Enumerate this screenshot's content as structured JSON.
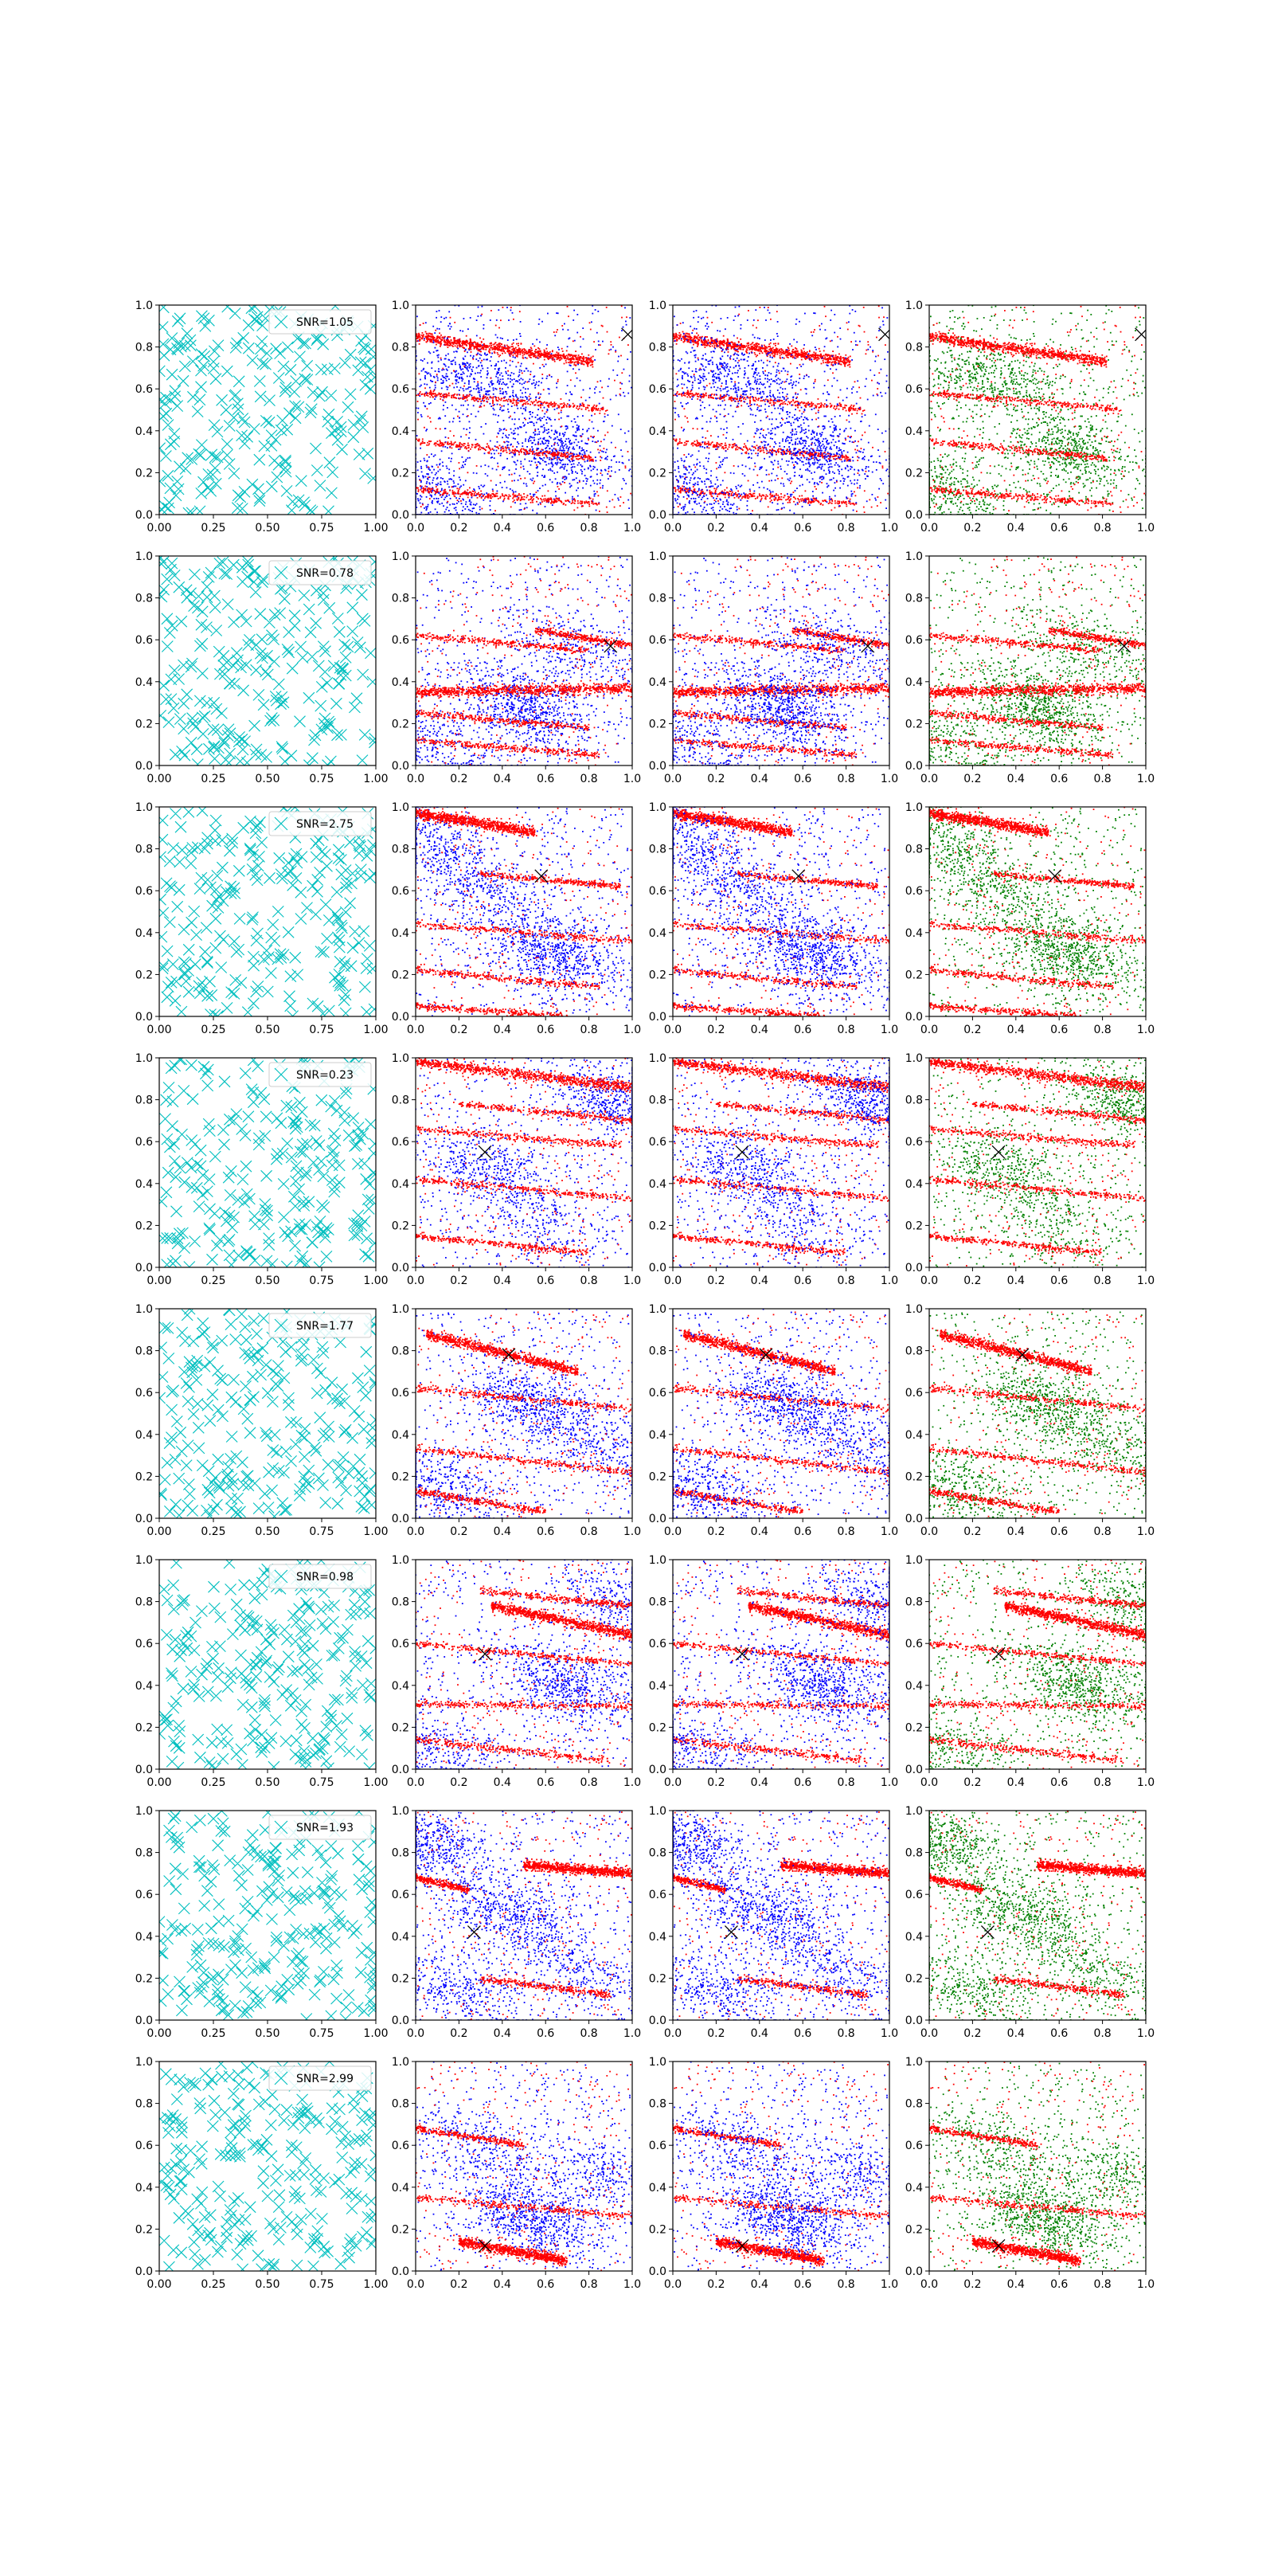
{
  "figure": {
    "rows": 8,
    "columns": [
      "random-positions",
      "red-blue-overlay",
      "red-blue-separate",
      "red-green-separate"
    ]
  },
  "colors": {
    "cyan": "#00bfbf",
    "red": "#ff0000",
    "blue": "#0000ff",
    "green": "#008000",
    "marker": "#000000"
  },
  "chart_data": {
    "type": "scatter",
    "grid": false,
    "xlim": [
      0,
      1
    ],
    "ylim": [
      0,
      1
    ],
    "col1_xticks": [
      "0.00",
      "0.25",
      "0.50",
      "0.75",
      "1.00"
    ],
    "col1_yticks": [
      "0.0",
      "0.2",
      "0.4",
      "0.6",
      "0.8",
      "1.0"
    ],
    "other_xticks": [
      "0.0",
      "0.2",
      "0.4",
      "0.6",
      "0.8",
      "1.0"
    ],
    "other_yticks": [
      "0.0",
      "0.2",
      "0.4",
      "0.6",
      "0.8",
      "1.0"
    ],
    "legend_position": "top-right",
    "rows": [
      {
        "legend": "SNR=1.05",
        "marker": [
          0.98,
          0.86
        ],
        "red_streaks": [
          [
            0.0,
            0.85,
            0.82,
            0.73
          ],
          [
            0.0,
            0.58,
            0.9,
            0.5
          ],
          [
            0.0,
            0.35,
            0.82,
            0.27
          ],
          [
            0.0,
            0.12,
            0.85,
            0.05
          ]
        ],
        "blue_blobs": [
          [
            0.3,
            0.65,
            0.7
          ],
          [
            0.65,
            0.3,
            0.8
          ],
          [
            0.1,
            0.1,
            0.5
          ]
        ]
      },
      {
        "legend": "SNR=0.78",
        "marker": [
          0.9,
          0.57
        ],
        "red_streaks": [
          [
            0.0,
            0.35,
            1.0,
            0.37
          ],
          [
            0.0,
            0.12,
            0.85,
            0.05
          ],
          [
            0.55,
            0.65,
            1.0,
            0.57
          ],
          [
            0.0,
            0.62,
            0.8,
            0.55
          ],
          [
            0.0,
            0.25,
            0.8,
            0.18
          ]
        ],
        "blue_blobs": [
          [
            0.5,
            0.28,
            1.0
          ],
          [
            0.75,
            0.55,
            0.4
          ],
          [
            0.1,
            0.1,
            0.4
          ]
        ]
      },
      {
        "legend": "SNR=2.75",
        "marker": [
          0.58,
          0.67
        ],
        "red_streaks": [
          [
            0.0,
            0.97,
            0.55,
            0.88
          ],
          [
            0.3,
            0.68,
            0.95,
            0.62
          ],
          [
            0.0,
            0.44,
            1.0,
            0.36
          ],
          [
            0.0,
            0.22,
            0.85,
            0.14
          ],
          [
            0.0,
            0.05,
            0.7,
            0.0
          ]
        ],
        "blue_blobs": [
          [
            0.05,
            0.85,
            0.6
          ],
          [
            0.65,
            0.3,
            1.0
          ],
          [
            0.35,
            0.6,
            0.5
          ]
        ]
      },
      {
        "legend": "SNR=0.23",
        "marker": [
          0.32,
          0.55
        ],
        "red_streaks": [
          [
            0.0,
            0.98,
            1.0,
            0.86
          ],
          [
            0.2,
            0.78,
            1.0,
            0.7
          ],
          [
            0.0,
            0.66,
            0.95,
            0.58
          ],
          [
            0.0,
            0.42,
            1.0,
            0.33
          ],
          [
            0.0,
            0.15,
            0.8,
            0.07
          ]
        ],
        "blue_blobs": [
          [
            0.92,
            0.78,
            0.8
          ],
          [
            0.35,
            0.45,
            0.6
          ],
          [
            0.6,
            0.2,
            0.3
          ]
        ]
      },
      {
        "legend": "SNR=1.77",
        "marker": [
          0.43,
          0.78
        ],
        "red_streaks": [
          [
            0.05,
            0.88,
            0.75,
            0.7
          ],
          [
            0.0,
            0.62,
            1.0,
            0.52
          ],
          [
            0.0,
            0.33,
            1.0,
            0.22
          ],
          [
            0.0,
            0.13,
            0.6,
            0.03
          ]
        ],
        "blue_blobs": [
          [
            0.55,
            0.55,
            0.8
          ],
          [
            0.1,
            0.15,
            0.6
          ],
          [
            0.85,
            0.35,
            0.4
          ]
        ]
      },
      {
        "legend": "SNR=0.98",
        "marker": [
          0.32,
          0.55
        ],
        "red_streaks": [
          [
            0.35,
            0.78,
            1.0,
            0.64
          ],
          [
            0.0,
            0.31,
            1.0,
            0.3
          ],
          [
            0.0,
            0.6,
            1.0,
            0.5
          ],
          [
            0.0,
            0.14,
            0.9,
            0.04
          ],
          [
            0.3,
            0.85,
            1.0,
            0.78
          ]
        ],
        "blue_blobs": [
          [
            0.7,
            0.4,
            0.9
          ],
          [
            0.95,
            0.8,
            0.5
          ],
          [
            0.1,
            0.1,
            0.4
          ]
        ]
      },
      {
        "legend": "SNR=1.93",
        "marker": [
          0.27,
          0.42
        ],
        "red_streaks": [
          [
            0.5,
            0.74,
            1.0,
            0.7
          ],
          [
            0.0,
            0.68,
            0.25,
            0.62
          ],
          [
            0.3,
            0.2,
            0.9,
            0.12
          ]
        ],
        "blue_blobs": [
          [
            0.05,
            0.85,
            0.8
          ],
          [
            0.45,
            0.5,
            0.8
          ],
          [
            0.2,
            0.15,
            0.5
          ],
          [
            0.8,
            0.2,
            0.4
          ]
        ]
      },
      {
        "legend": "SNR=2.99",
        "marker": [
          0.32,
          0.12
        ],
        "red_streaks": [
          [
            0.2,
            0.14,
            0.7,
            0.05
          ],
          [
            0.0,
            0.68,
            0.5,
            0.6
          ],
          [
            0.0,
            0.35,
            1.0,
            0.26
          ]
        ],
        "blue_blobs": [
          [
            0.55,
            0.25,
            1.0
          ],
          [
            0.3,
            0.6,
            0.4
          ],
          [
            0.85,
            0.45,
            0.4
          ]
        ]
      }
    ]
  }
}
